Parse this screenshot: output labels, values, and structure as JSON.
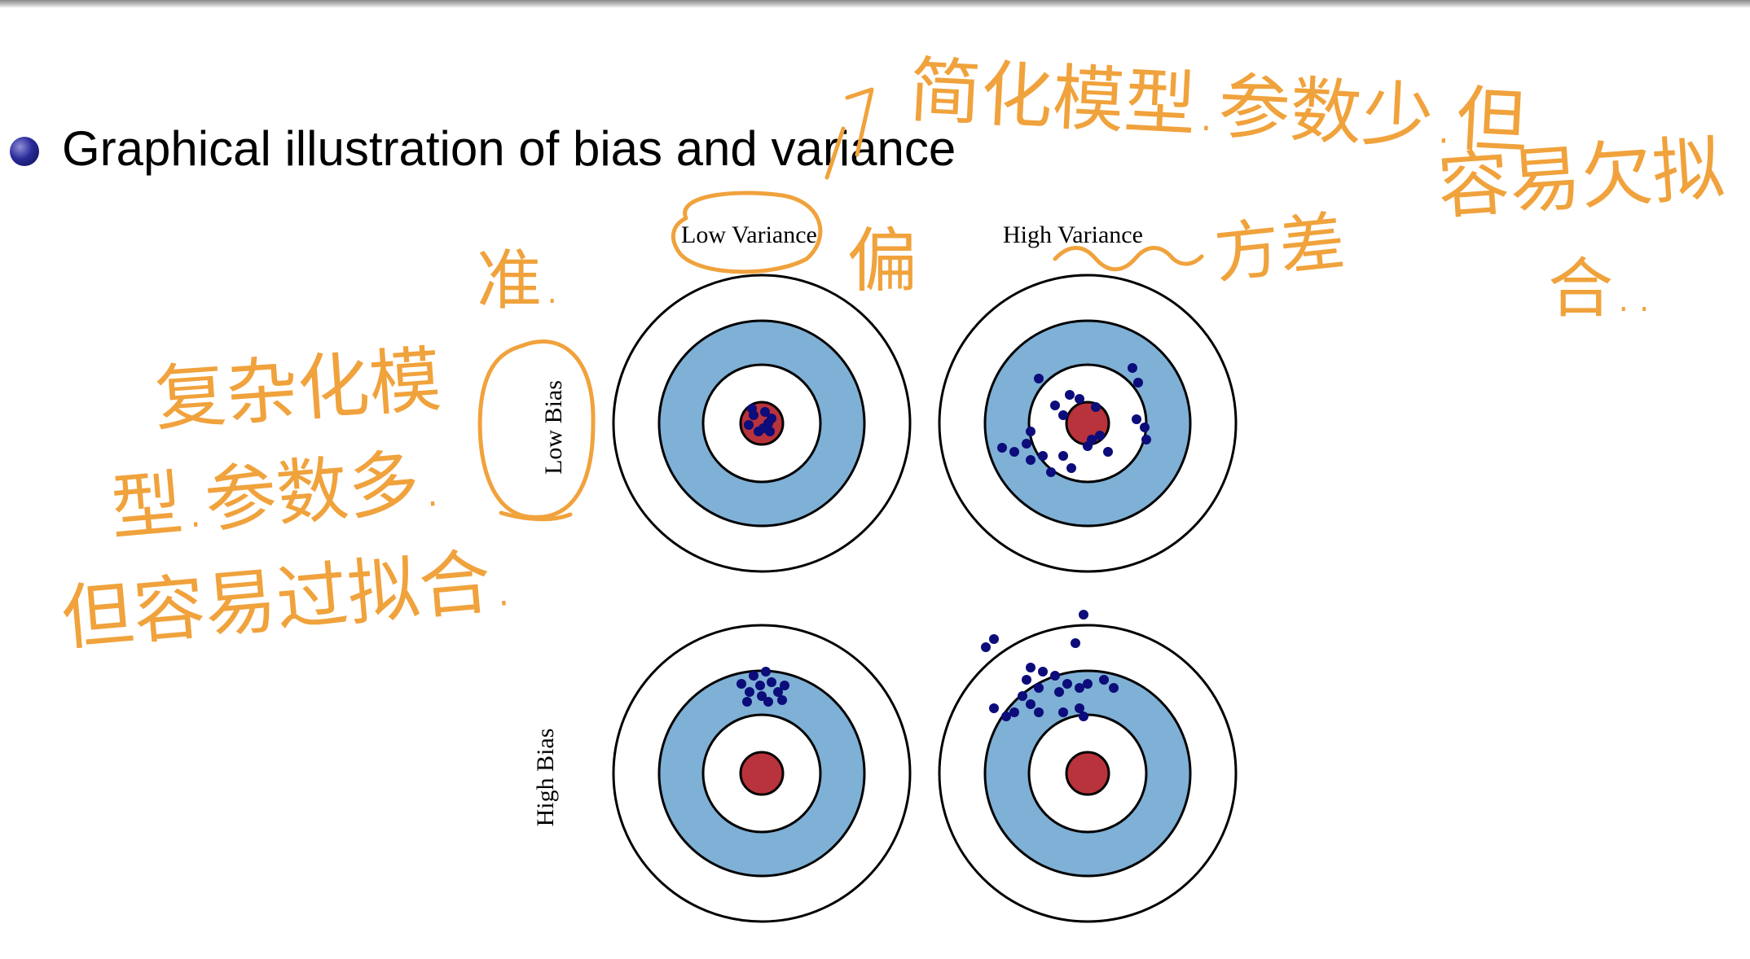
{
  "slide": {
    "bullet_text": "Graphical illustration of bias and variance"
  },
  "figure": {
    "column_labels": [
      "Low Variance",
      "High Variance"
    ],
    "row_labels": [
      "Low Bias",
      "High Bias"
    ],
    "colors": {
      "ring_outer": "#ffffff",
      "ring_band": "#7fb0d6",
      "bullseye": "#b8333b",
      "dot": "#0c0c7a",
      "annotation_ink": "#f0a23c"
    },
    "targets": [
      {
        "name": "low-bias-low-variance",
        "dots": 9
      },
      {
        "name": "low-bias-high-variance",
        "dots": 24
      },
      {
        "name": "high-bias-low-variance",
        "dots": 12
      },
      {
        "name": "high-bias-high-variance",
        "dots": 24
      }
    ]
  },
  "annotations": {
    "right_top": "简化模型.参数少.但",
    "right_mid": "容易欠拟",
    "right_end": "合..",
    "accurate": "准.",
    "bias_word": "偏",
    "variance_word": "方差",
    "left_line1": "复杂化模",
    "left_line2": "型.参数多.",
    "left_line3": "但容易过拟合."
  }
}
